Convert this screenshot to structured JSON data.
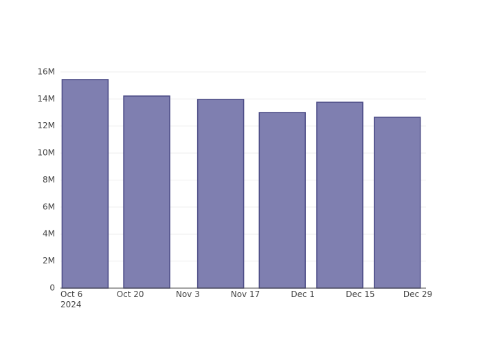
{
  "chart_data": {
    "type": "bar",
    "x": [
      "2024-10-09",
      "2024-10-24",
      "2024-11-11",
      "2024-11-26",
      "2024-12-10",
      "2024-12-24"
    ],
    "values": [
      15440000,
      14220000,
      13970000,
      13000000,
      13760000,
      12650000
    ],
    "color": "#7f7fb0",
    "line_color": "#4a4a85",
    "xlim": [
      "2024-10-03",
      "2024-12-31"
    ],
    "xticks": [
      {
        "value": "2024-10-06",
        "label": "Oct 6\n2024"
      },
      {
        "value": "2024-10-20",
        "label": "Oct 20"
      },
      {
        "value": "2024-11-03",
        "label": "Nov 3"
      },
      {
        "value": "2024-11-17",
        "label": "Nov 17"
      },
      {
        "value": "2024-12-01",
        "label": "Dec 1"
      },
      {
        "value": "2024-12-15",
        "label": "Dec 15"
      },
      {
        "value": "2024-12-29",
        "label": "Dec 29"
      }
    ],
    "ylim": [
      0,
      16250000
    ],
    "yticks": [
      0,
      {
        "value": 2000000,
        "label": "2M"
      },
      {
        "value": 4000000,
        "label": "4M"
      },
      {
        "value": 6000000,
        "label": "6M"
      },
      {
        "value": 8000000,
        "label": "8M"
      },
      {
        "value": 10000000,
        "label": "10M"
      },
      {
        "value": 12000000,
        "label": "12M"
      },
      {
        "value": 14000000,
        "label": "14M"
      },
      {
        "value": 16000000,
        "label": "16M"
      }
    ],
    "grid": true
  }
}
